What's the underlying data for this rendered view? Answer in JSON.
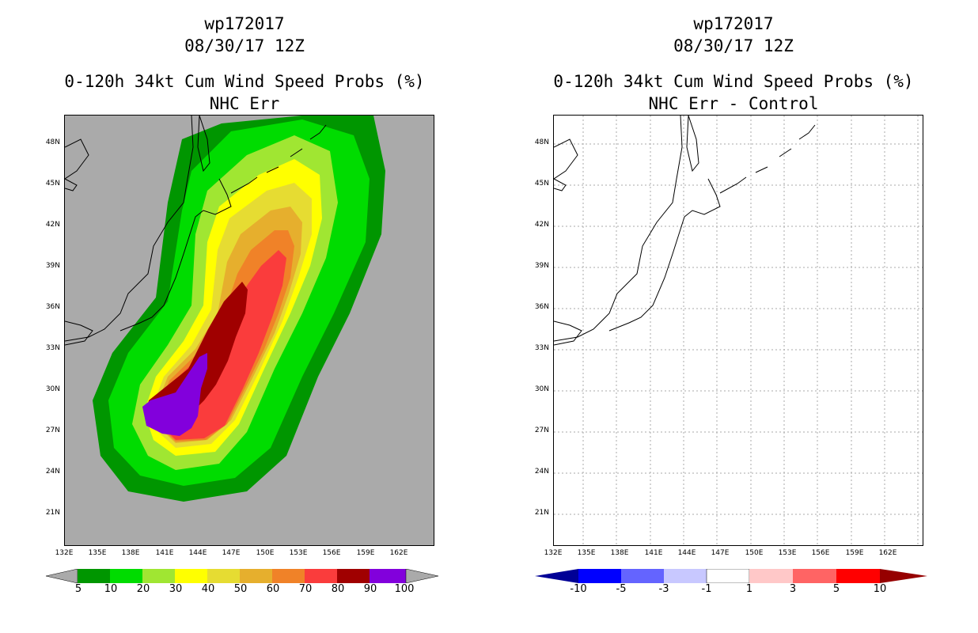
{
  "left_panel": {
    "title1": "wp172017",
    "title2": "08/30/17 12Z",
    "title3": "0-120h 34kt Cum Wind Speed Probs (%)",
    "title4": "NHC Err",
    "colorbar": {
      "labels": [
        "5",
        "10",
        "20",
        "30",
        "40",
        "50",
        "60",
        "70",
        "80",
        "90",
        "100"
      ],
      "colors": [
        "#009600",
        "#00dc00",
        "#a0e632",
        "#ffff00",
        "#e6dc32",
        "#e6af2d",
        "#f08228",
        "#fa3c3c",
        "#a00000",
        "#8200dc"
      ]
    }
  },
  "right_panel": {
    "title1": "wp172017",
    "title2": "08/30/17 12Z",
    "title3": "0-120h 34kt Cum Wind Speed Probs (%)",
    "title4": "NHC Err - Control",
    "colorbar": {
      "labels": [
        "-10",
        "-5",
        "-3",
        "-1",
        "1",
        "3",
        "5",
        "10"
      ],
      "colors": [
        "#000096",
        "#0000ff",
        "#6464ff",
        "#c8c8ff",
        "#ffffff",
        "#ffc8c8",
        "#ff6464",
        "#ff0000",
        "#960000",
        "#600000"
      ]
    }
  },
  "axes": {
    "lat_labels": [
      "48N",
      "45N",
      "42N",
      "39N",
      "36N",
      "33N",
      "30N",
      "27N",
      "24N",
      "21N"
    ],
    "lon_labels": [
      "132E",
      "135E",
      "138E",
      "141E",
      "144E",
      "147E",
      "150E",
      "153E",
      "156E",
      "159E",
      "162E"
    ]
  },
  "colors": {
    "ocean_left": "#aaaaaa",
    "ocean_right": "#ffffff",
    "coast": "#000000"
  }
}
